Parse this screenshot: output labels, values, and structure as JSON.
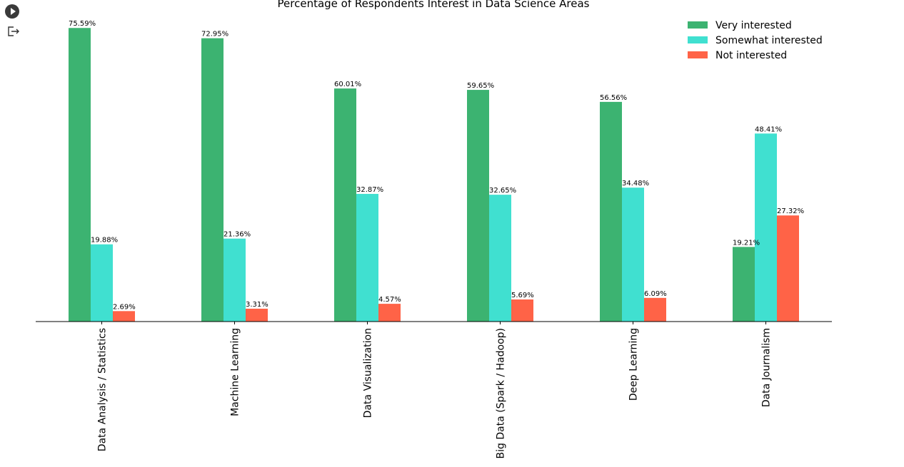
{
  "toolbar": {
    "run_icon": "play-circle-icon",
    "output_icon": "output-exit-icon"
  },
  "chart_data": {
    "type": "bar",
    "title": "Percentage of Respondents Interest in Data Science Areas",
    "xlabel": "",
    "ylabel": "",
    "ylim": [
      0,
      76
    ],
    "grid": false,
    "legend_position": "top-right",
    "categories": [
      "Data Analysis / Statistics",
      "Machine Learning",
      "Data Visualization",
      "Big Data (Spark / Hadoop)",
      "Deep Learning",
      "Data Journalism"
    ],
    "series": [
      {
        "name": "Very interested",
        "color": "#3cb371",
        "values": [
          75.59,
          72.95,
          60.01,
          59.65,
          56.56,
          19.21
        ],
        "labels": [
          "75.59%",
          "72.95%",
          "60.01%",
          "59.65%",
          "56.56%",
          "19.21%"
        ]
      },
      {
        "name": "Somewhat interested",
        "color": "#40e0d0",
        "values": [
          19.88,
          21.36,
          32.87,
          32.65,
          34.48,
          48.41
        ],
        "labels": [
          "19.88%",
          "21.36%",
          "32.87%",
          "32.65%",
          "34.48%",
          "48.41%"
        ]
      },
      {
        "name": "Not interested",
        "color": "#ff6347",
        "values": [
          2.69,
          3.31,
          4.57,
          5.69,
          6.09,
          27.32
        ],
        "labels": [
          "2.69%",
          "3.31%",
          "4.57%",
          "5.69%",
          "6.09%",
          "27.32%"
        ]
      }
    ]
  }
}
